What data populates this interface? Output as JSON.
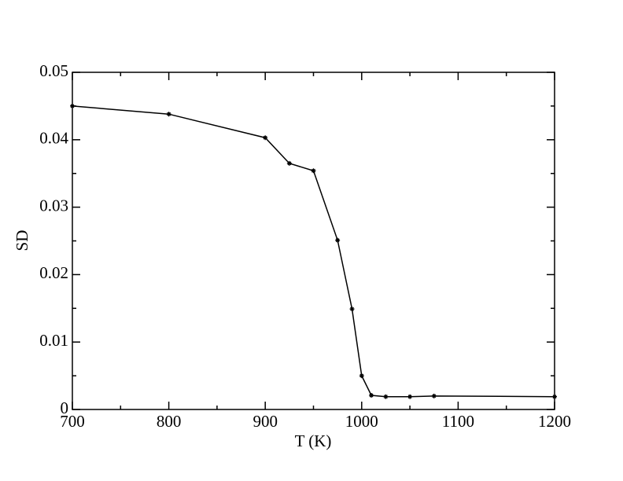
{
  "chart_data": {
    "type": "line",
    "x_label": "T (K)",
    "y_label": "SD",
    "x": [
      700,
      800,
      900,
      925,
      950,
      975,
      990,
      1000,
      1010,
      1025,
      1050,
      1075,
      1200
    ],
    "series": [
      {
        "color": "#000000",
        "values": [
          0.045,
          0.0438,
          0.0403,
          0.0365,
          0.0354,
          0.0251,
          0.0149,
          0.005,
          0.0021,
          0.0019,
          0.0019,
          0.002,
          0.0019
        ]
      }
    ],
    "xlim": [
      700,
      1200
    ],
    "xticks": [
      700,
      800,
      900,
      1000,
      1100,
      1200
    ],
    "xminorticks": [
      750,
      850,
      950,
      1050,
      1150
    ],
    "ylim": [
      0,
      0.05
    ],
    "yticks": [
      0,
      0.01,
      0.02,
      0.03,
      0.04,
      0.05
    ],
    "yminorticks": [
      0.005,
      0.015,
      0.025,
      0.035,
      0.045
    ],
    "grid": false,
    "markers": true
  }
}
